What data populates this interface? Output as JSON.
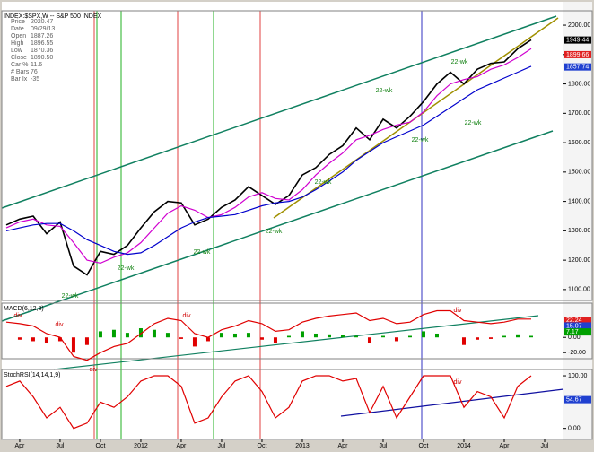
{
  "chart_data": [
    {
      "type": "line",
      "title": "INDEX:$SPX,W -- S&P 500 INDEX",
      "info": [
        {
          "label": "Price",
          "value": "2020.47"
        },
        {
          "label": "Date",
          "value": "09/29/13"
        },
        {
          "label": "Open",
          "value": "1887.26"
        },
        {
          "label": "High",
          "value": "1896.55"
        },
        {
          "label": "Low",
          "value": "1870.36"
        },
        {
          "label": "Close",
          "value": "1890.50"
        },
        {
          "label": "Car %",
          "value": "11.6"
        },
        {
          "label": "# Bars",
          "value": "76"
        },
        {
          "label": "Bar Ix",
          "value": "-35"
        }
      ],
      "x": [
        2,
        3,
        4,
        5,
        6,
        7,
        8,
        9,
        10,
        11,
        12,
        13,
        14,
        15,
        16,
        17,
        18,
        19,
        20,
        21,
        22,
        23,
        24,
        25,
        26,
        27,
        28,
        29,
        30,
        31,
        32,
        33,
        34,
        35,
        36,
        37,
        38,
        39,
        40,
        41
      ],
      "xlim": [
        1.67,
        43.4
      ],
      "ylim": [
        1063,
        2049
      ],
      "yticks": [
        {
          "value": 1100,
          "label": "1100.00"
        },
        {
          "value": 1200,
          "label": "1200.00"
        },
        {
          "value": 1300,
          "label": "1300.00"
        },
        {
          "value": 1400,
          "label": "1400.00"
        },
        {
          "value": 1500,
          "label": "1500.00"
        },
        {
          "value": 1600,
          "label": "1600.00"
        },
        {
          "value": 1700,
          "label": "1700.00"
        },
        {
          "value": 1800,
          "label": "1800.00"
        },
        {
          "value": 1900,
          "label": "1900.00"
        },
        {
          "value": 2000,
          "label": "2000.00"
        }
      ],
      "series": [
        {
          "color": "#000000",
          "values": [
            1320,
            1340,
            1350,
            1290,
            1330,
            1180,
            1150,
            1230,
            1220,
            1250,
            1310,
            1365,
            1400,
            1395,
            1320,
            1340,
            1380,
            1405,
            1450,
            1420,
            1390,
            1420,
            1490,
            1515,
            1560,
            1590,
            1650,
            1610,
            1680,
            1650,
            1690,
            1740,
            1800,
            1840,
            1800,
            1850,
            1870,
            1875,
            1920,
            1950
          ]
        },
        {
          "color": "#d000d0",
          "values": [
            1310,
            1330,
            1340,
            1320,
            1315,
            1260,
            1200,
            1190,
            1210,
            1225,
            1260,
            1310,
            1360,
            1385,
            1370,
            1345,
            1355,
            1380,
            1415,
            1430,
            1410,
            1405,
            1440,
            1490,
            1530,
            1565,
            1610,
            1625,
            1645,
            1660,
            1670,
            1705,
            1760,
            1800,
            1815,
            1825,
            1850,
            1865,
            1890,
            1920
          ]
        },
        {
          "color": "#0000cc",
          "values": [
            1300,
            1310,
            1320,
            1325,
            1325,
            1300,
            1270,
            1250,
            1230,
            1220,
            1225,
            1250,
            1280,
            1310,
            1330,
            1345,
            1350,
            1355,
            1370,
            1385,
            1395,
            1400,
            1415,
            1440,
            1470,
            1500,
            1540,
            1570,
            1600,
            1620,
            1640,
            1660,
            1690,
            1720,
            1750,
            1780,
            1800,
            1820,
            1840,
            1860
          ]
        }
      ],
      "levels": [
        {
          "value": 1949.44,
          "color": "#000000"
        },
        {
          "value": 1899.66,
          "color": "#e02020"
        },
        {
          "value": 1857.74,
          "color": "#2040d0"
        }
      ],
      "annotations": [
        "22-wk",
        "22-wk",
        "22-wk",
        "22-wk",
        "22-wk",
        "22-wk",
        "22-wk",
        "22-wk",
        "22-wk"
      ]
    },
    {
      "type": "combo",
      "title": "MACD(6,12,8)",
      "x": [
        2,
        3,
        4,
        5,
        6,
        7,
        8,
        9,
        10,
        11,
        12,
        13,
        14,
        15,
        16,
        17,
        18,
        19,
        20,
        21,
        22,
        23,
        24,
        25,
        26,
        27,
        28,
        29,
        30,
        31,
        32,
        33,
        34,
        35,
        36,
        37,
        38,
        39,
        40,
        41
      ],
      "xlim": [
        1.67,
        43.4
      ],
      "ylim": [
        -28,
        45
      ],
      "yticks": [
        {
          "value": 0,
          "label": "0.00"
        },
        {
          "value": -20,
          "label": "-20.00"
        }
      ],
      "series": [
        {
          "mark": "bar",
          "color": "#00a000",
          "negative_color": "#e00000",
          "values": [
            0,
            -3,
            -5,
            -8,
            -5,
            -20,
            -10,
            8,
            10,
            6,
            12,
            10,
            6,
            -2,
            -12,
            -5,
            6,
            5,
            6,
            -3,
            -8,
            2,
            8,
            5,
            4,
            3,
            2,
            -8,
            2,
            -5,
            2,
            8,
            5,
            0,
            -10,
            -3,
            -2,
            2,
            4,
            2
          ]
        },
        {
          "mark": "line",
          "color": "#e00000",
          "values": [
            20,
            18,
            15,
            5,
            0,
            -25,
            -30,
            -20,
            -12,
            -8,
            5,
            18,
            25,
            22,
            5,
            0,
            10,
            15,
            22,
            18,
            8,
            10,
            20,
            25,
            28,
            30,
            32,
            22,
            25,
            18,
            20,
            30,
            35,
            35,
            22,
            20,
            18,
            20,
            24,
            24
          ]
        }
      ],
      "levels": [
        {
          "value": 22.24,
          "color": "#e02020"
        },
        {
          "value": 15.07,
          "color": "#2040d0"
        },
        {
          "value": 7.17,
          "color": "#00a000"
        }
      ],
      "annotations": [
        "div",
        "div",
        "div",
        "div",
        "div"
      ]
    },
    {
      "type": "line",
      "title": "StochRSI(14,14,1,9)",
      "x": [
        2,
        3,
        4,
        5,
        6,
        7,
        8,
        9,
        10,
        11,
        12,
        13,
        14,
        15,
        16,
        17,
        18,
        19,
        20,
        21,
        22,
        23,
        24,
        25,
        26,
        27,
        28,
        29,
        30,
        31,
        32,
        33,
        34,
        35,
        36,
        37,
        38,
        39,
        40,
        41
      ],
      "xlim": [
        1.67,
        43.4
      ],
      "ylim": [
        -21,
        112
      ],
      "yticks": [
        {
          "value": 100,
          "label": "100.00"
        },
        {
          "value": 0,
          "label": "0.00"
        }
      ],
      "xticks": [
        {
          "value": 3,
          "label": "Apr"
        },
        {
          "value": 6,
          "label": "Jul"
        },
        {
          "value": 9,
          "label": "Oct"
        },
        {
          "value": 12,
          "label": "2012"
        },
        {
          "value": 15,
          "label": "Apr"
        },
        {
          "value": 18,
          "label": "Jul"
        },
        {
          "value": 21,
          "label": "Oct"
        },
        {
          "value": 24,
          "label": "2013"
        },
        {
          "value": 27,
          "label": "Apr"
        },
        {
          "value": 30,
          "label": "Jul"
        },
        {
          "value": 33,
          "label": "Oct"
        },
        {
          "value": 36,
          "label": "2014"
        },
        {
          "value": 39,
          "label": "Apr"
        },
        {
          "value": 42,
          "label": "Jul"
        }
      ],
      "series": [
        {
          "color": "#e00000",
          "values": [
            80,
            90,
            60,
            20,
            40,
            0,
            10,
            50,
            40,
            60,
            90,
            100,
            100,
            80,
            10,
            20,
            60,
            90,
            100,
            70,
            20,
            40,
            90,
            100,
            100,
            90,
            95,
            30,
            80,
            20,
            60,
            100,
            100,
            100,
            40,
            70,
            60,
            20,
            80,
            100
          ]
        }
      ],
      "levels": [
        {
          "value": 54.67,
          "color": "#2040d0"
        }
      ],
      "annotations": [
        "div"
      ]
    }
  ]
}
